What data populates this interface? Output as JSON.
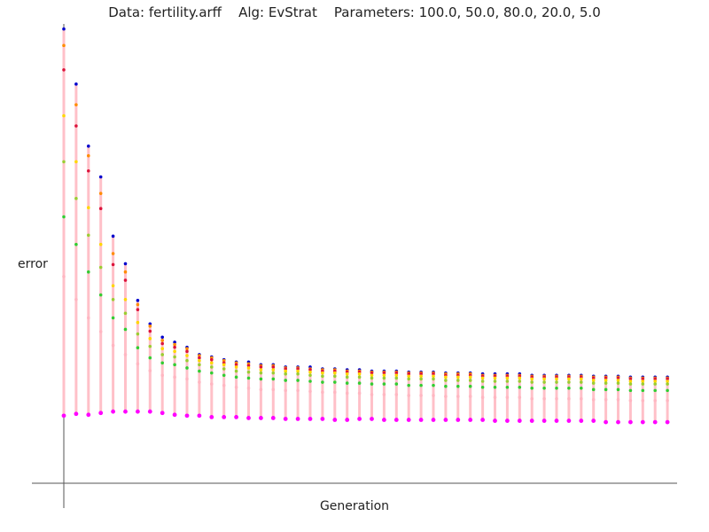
{
  "title": "Data: fertility.arff    Alg: EvStrat    Parameters: 100.0, 50.0, 80.0, 20.0, 5.0",
  "chart_data": {
    "type": "scatter",
    "xlabel": "Generation",
    "ylabel": "error",
    "xlim": [
      0,
      50
    ],
    "ylim": [
      0,
      100
    ],
    "grid": false,
    "generations": [
      0,
      1,
      2,
      3,
      4,
      5,
      6,
      7,
      8,
      9,
      10,
      11,
      12,
      13,
      14,
      15,
      16,
      17,
      18,
      19,
      20,
      21,
      22,
      23,
      24,
      25,
      26,
      27,
      28,
      29,
      30,
      31,
      32,
      33,
      34,
      35,
      36,
      37,
      38,
      39,
      40,
      41,
      42,
      43,
      44,
      45,
      46,
      47,
      48,
      49
    ],
    "series": [
      {
        "color": "#0000cc",
        "values": [
          98.9,
          86.9,
          73.4,
          66.7,
          53.8,
          47.8,
          39.8,
          34.7,
          31.8,
          30.7,
          29.6,
          28.0,
          27.5,
          26.9,
          26.4,
          26.4,
          25.8,
          25.8,
          25.3,
          25.3,
          25.3,
          24.9,
          24.9,
          24.7,
          24.7,
          24.4,
          24.4,
          24.4,
          24.2,
          24.2,
          24.2,
          24.0,
          24.0,
          24.0,
          23.8,
          23.8,
          23.8,
          23.8,
          23.5,
          23.5,
          23.5,
          23.5,
          23.5,
          23.3,
          23.3,
          23.3,
          23.1,
          23.1,
          23.1,
          23.1
        ]
      },
      {
        "color": "#ff8c00",
        "values": [
          95.3,
          82.4,
          71.3,
          63.1,
          50.0,
          46.0,
          38.9,
          34.2,
          31.1,
          30.2,
          29.3,
          27.8,
          27.3,
          26.7,
          26.2,
          26.0,
          25.6,
          25.6,
          25.1,
          25.1,
          24.9,
          24.7,
          24.7,
          24.4,
          24.4,
          24.2,
          24.2,
          24.2,
          24.0,
          24.0,
          24.0,
          23.8,
          23.8,
          23.8,
          23.5,
          23.5,
          23.5,
          23.5,
          23.3,
          23.3,
          23.3,
          23.3,
          23.3,
          23.1,
          23.1,
          23.1,
          22.9,
          22.9,
          22.9,
          22.9
        ]
      },
      {
        "color": "#dc143c",
        "values": [
          90.0,
          77.8,
          68.0,
          59.8,
          47.6,
          44.2,
          37.8,
          33.1,
          30.4,
          29.6,
          28.7,
          27.3,
          26.9,
          26.2,
          25.8,
          25.6,
          25.3,
          25.3,
          24.9,
          24.9,
          24.7,
          24.4,
          24.4,
          24.2,
          24.2,
          24.0,
          24.0,
          24.0,
          23.8,
          23.8,
          23.8,
          23.5,
          23.5,
          23.5,
          23.3,
          23.3,
          23.3,
          23.3,
          23.1,
          23.1,
          23.1,
          23.1,
          23.1,
          22.9,
          22.9,
          22.9,
          22.7,
          22.7,
          22.7,
          22.7
        ]
      },
      {
        "color": "#ffd700",
        "values": [
          80.0,
          70.0,
          60.0,
          52.0,
          43.0,
          40.0,
          35.0,
          31.5,
          29.3,
          28.7,
          27.8,
          26.7,
          26.2,
          25.8,
          25.3,
          25.1,
          24.7,
          24.7,
          24.4,
          24.4,
          24.2,
          24.0,
          24.0,
          23.8,
          23.8,
          23.5,
          23.5,
          23.5,
          23.3,
          23.3,
          23.3,
          23.1,
          23.1,
          23.1,
          22.9,
          22.9,
          22.9,
          22.9,
          22.7,
          22.7,
          22.7,
          22.7,
          22.7,
          22.4,
          22.4,
          22.4,
          22.2,
          22.2,
          22.2,
          22.2
        ]
      },
      {
        "color": "#9acd32",
        "values": [
          70.0,
          62.0,
          54.0,
          47.0,
          40.0,
          37.0,
          32.5,
          29.8,
          28.0,
          27.5,
          26.7,
          25.8,
          25.3,
          24.9,
          24.4,
          24.2,
          24.0,
          24.0,
          23.8,
          23.8,
          23.5,
          23.3,
          23.3,
          23.1,
          23.1,
          22.9,
          22.9,
          22.9,
          22.7,
          22.7,
          22.7,
          22.4,
          22.4,
          22.4,
          22.2,
          22.2,
          22.2,
          22.2,
          22.0,
          22.0,
          22.0,
          22.0,
          22.0,
          21.8,
          21.8,
          21.8,
          21.6,
          21.6,
          21.6,
          21.6
        ]
      },
      {
        "color": "#32cd32",
        "values": [
          58.0,
          52.0,
          46.0,
          41.0,
          36.0,
          33.5,
          29.5,
          27.3,
          26.2,
          25.8,
          25.1,
          24.4,
          24.0,
          23.5,
          23.1,
          22.9,
          22.7,
          22.7,
          22.4,
          22.4,
          22.2,
          22.0,
          22.0,
          21.8,
          21.8,
          21.6,
          21.6,
          21.6,
          21.3,
          21.3,
          21.3,
          21.1,
          21.1,
          21.1,
          20.9,
          20.9,
          20.9,
          20.9,
          20.7,
          20.7,
          20.7,
          20.7,
          20.7,
          20.4,
          20.4,
          20.4,
          20.2,
          20.2,
          20.2,
          20.2
        ]
      },
      {
        "color": "#ffb6c1",
        "values": [
          45.0,
          40.0,
          36.0,
          33.0,
          30.0,
          28.0,
          26.0,
          24.5,
          23.5,
          23.1,
          22.7,
          22.0,
          21.6,
          21.3,
          20.9,
          20.7,
          20.4,
          20.4,
          20.2,
          20.2,
          20.0,
          19.8,
          19.8,
          19.6,
          19.6,
          19.3,
          19.3,
          19.3,
          19.1,
          19.1,
          19.1,
          18.9,
          18.9,
          18.9,
          18.7,
          18.7,
          18.7,
          18.7,
          18.4,
          18.4,
          18.4,
          18.4,
          18.4,
          18.2,
          18.2,
          18.2,
          18.0,
          18.0,
          18.0,
          18.0
        ]
      },
      {
        "color": "#ff00ff",
        "values": [
          14.7,
          15.1,
          14.9,
          15.3,
          15.6,
          15.6,
          15.6,
          15.6,
          15.3,
          14.9,
          14.7,
          14.7,
          14.4,
          14.4,
          14.4,
          14.2,
          14.2,
          14.2,
          14.0,
          14.0,
          14.0,
          14.0,
          13.8,
          13.8,
          14.0,
          14.0,
          13.8,
          13.8,
          13.8,
          13.8,
          13.8,
          13.8,
          13.8,
          13.8,
          13.8,
          13.6,
          13.6,
          13.6,
          13.6,
          13.6,
          13.6,
          13.6,
          13.6,
          13.6,
          13.3,
          13.3,
          13.3,
          13.3,
          13.3,
          13.3
        ]
      }
    ]
  }
}
